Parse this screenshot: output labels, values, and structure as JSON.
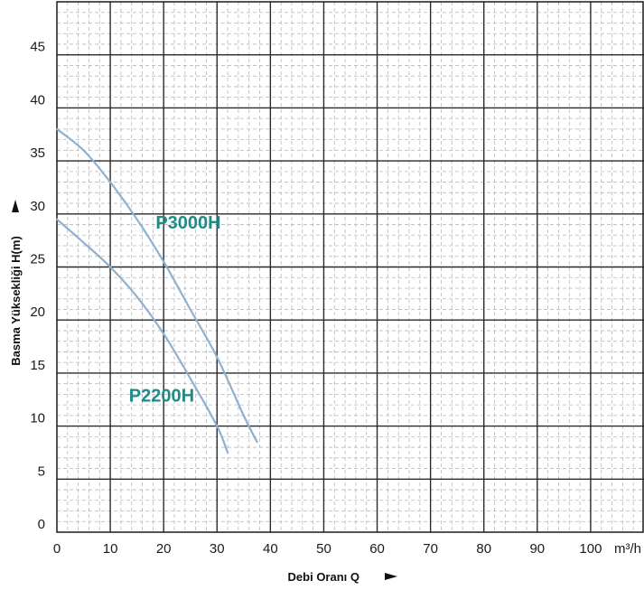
{
  "chart_data": {
    "type": "line",
    "xlabel": "Debi Oranı Q",
    "ylabel": "Basma Yüksekliği H(m)",
    "x_unit": "m³/h",
    "xlim": [
      0,
      110
    ],
    "ylim": [
      0,
      50
    ],
    "x_ticks": [
      "0",
      "10",
      "20",
      "30",
      "40",
      "50",
      "60",
      "70",
      "80",
      "90",
      "100"
    ],
    "y_ticks": [
      "0",
      "5",
      "10",
      "15",
      "20",
      "25",
      "30",
      "35",
      "40",
      "45"
    ],
    "grid": true,
    "minor_grid": true,
    "series": [
      {
        "name": "P3000H",
        "color": "#8fb0d0",
        "label_color": "#1f8a86",
        "points": [
          [
            0,
            38.0
          ],
          [
            5,
            36.0
          ],
          [
            10,
            33.0
          ],
          [
            15,
            29.5
          ],
          [
            20,
            25.5
          ],
          [
            25,
            21.0
          ],
          [
            30,
            16.5
          ],
          [
            35,
            11.0
          ],
          [
            37.5,
            8.5
          ]
        ]
      },
      {
        "name": "P2200H",
        "color": "#8fb0d0",
        "label_color": "#1f8a86",
        "points": [
          [
            0,
            29.5
          ],
          [
            5,
            27.3
          ],
          [
            10,
            25.0
          ],
          [
            15,
            22.2
          ],
          [
            20,
            18.7
          ],
          [
            25,
            14.5
          ],
          [
            30,
            10.0
          ],
          [
            32,
            7.5
          ]
        ]
      }
    ]
  }
}
